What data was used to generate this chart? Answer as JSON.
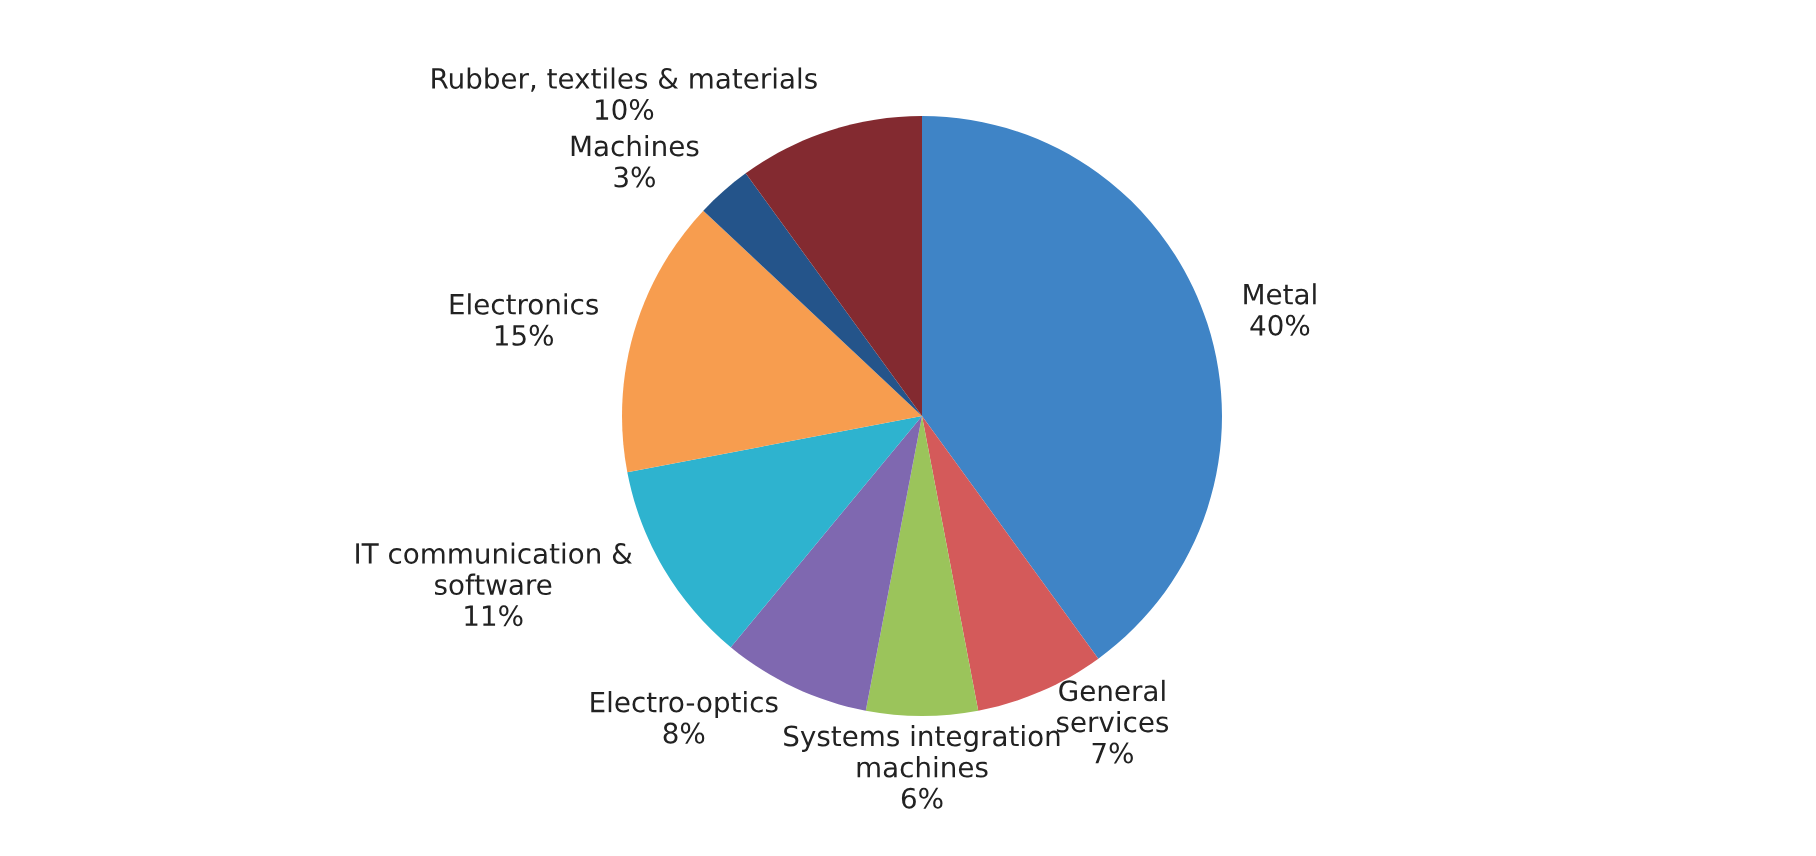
{
  "chart_data": {
    "type": "pie",
    "categories": [
      "Metal",
      "General\nservices",
      "Systems integration\nmachines",
      "Electro-optics",
      "IT communication &\nsoftware",
      "Electronics",
      "Machines",
      "Rubber, textiles & materials"
    ],
    "values": [
      40,
      7,
      6,
      8,
      11,
      15,
      3,
      10
    ],
    "value_labels": [
      "40%",
      "7%",
      "6%",
      "8%",
      "11%",
      "15%",
      "3%",
      "10%"
    ],
    "colors": [
      "#3f84c6",
      "#d45a5a",
      "#9bc45b",
      "#7f68b0",
      "#2eb3cf",
      "#f79d4f",
      "#24548a",
      "#832a30"
    ]
  }
}
